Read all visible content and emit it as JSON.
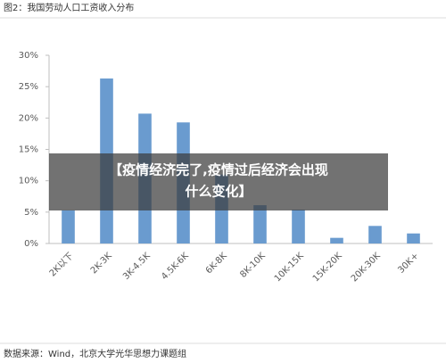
{
  "chart_data": {
    "type": "bar",
    "title": "图2：我国劳动人口工资收入分布",
    "source": "数据来源：Wind，北京大学光华思想力课题组",
    "categories": [
      "2K以下",
      "2K-3K",
      "3K-4.5K",
      "4.5K-6K",
      "6K-8K",
      "8K-10K",
      "10K-15K",
      "15K-20K",
      "20K-30K",
      "30K+"
    ],
    "values": [
      5.3,
      26.3,
      20.7,
      19.3,
      11,
      6.1,
      5.4,
      0.9,
      2.8,
      1.6
    ],
    "color": "#6a9bcf",
    "ylim": [
      0,
      30
    ],
    "yticks": [
      {
        "value": 0,
        "label": "0%"
      },
      {
        "value": 5,
        "label": "5%"
      },
      {
        "value": 10,
        "label": "10%"
      },
      {
        "value": 15,
        "label": "15%"
      },
      {
        "value": 20,
        "label": "20%"
      },
      {
        "value": 25,
        "label": "25%"
      },
      {
        "value": 30,
        "label": "30%"
      }
    ],
    "grid": false
  },
  "overlay": {
    "lines": [
      "【疫情经济完了,疫情过后经济会出现",
      "什么变化】"
    ]
  }
}
